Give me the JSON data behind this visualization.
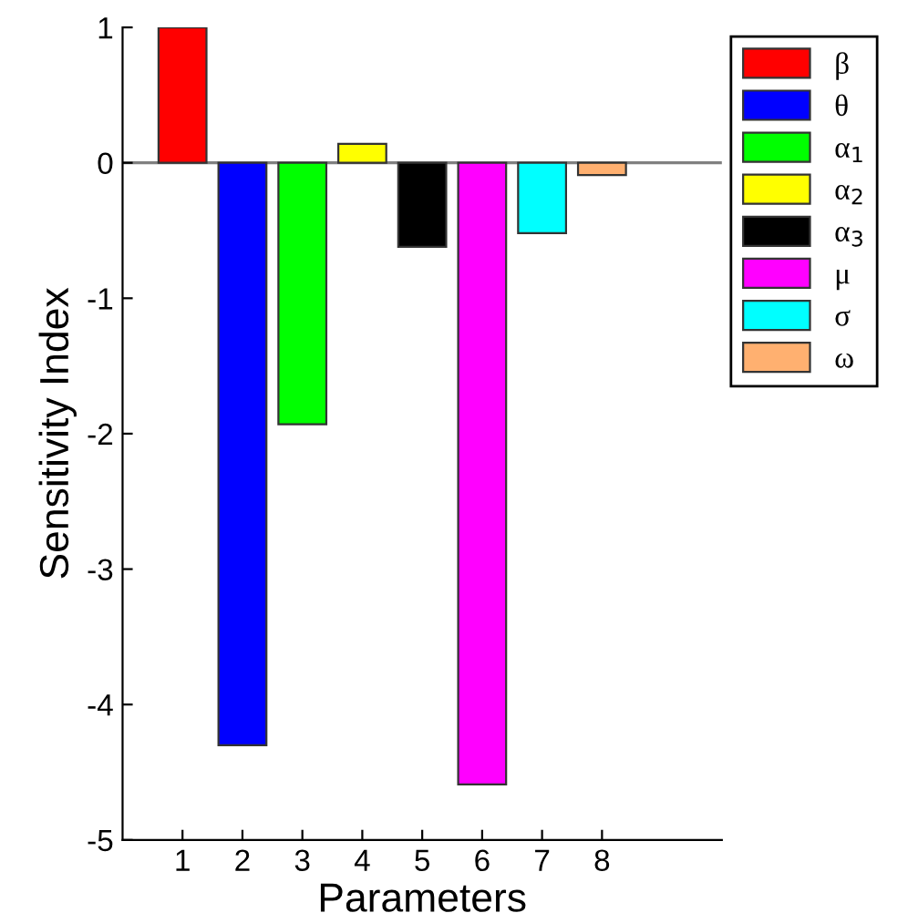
{
  "chart_data": {
    "type": "bar",
    "xlabel": "Parameters",
    "ylabel": "Sensitivity Index",
    "xlim": [
      0,
      10
    ],
    "xticks": [
      1,
      2,
      3,
      4,
      5,
      6,
      7,
      8
    ],
    "ylim": [
      -5,
      1
    ],
    "yticks": [
      -5,
      -4,
      -3,
      -2,
      -1,
      0,
      1
    ],
    "grid": false,
    "legend": "right",
    "ref_lines": [
      {
        "axis": "y",
        "value": 0,
        "color": "#808080"
      }
    ],
    "series": [
      {
        "name": "β",
        "color": "#ff0000",
        "x": [
          1
        ],
        "values": [
          1.0
        ]
      },
      {
        "name": "θ",
        "color": "#0000ff",
        "x": [
          2
        ],
        "values": [
          -4.3
        ]
      },
      {
        "name": "α$_{1}$",
        "color": "#00ff00",
        "x": [
          3
        ],
        "values": [
          -1.93
        ]
      },
      {
        "name": "α$_{2}$",
        "color": "#ffff00",
        "x": [
          4
        ],
        "values": [
          0.14
        ]
      },
      {
        "name": "α$_{3}$",
        "color": "#000000",
        "x": [
          5
        ],
        "values": [
          -0.62
        ]
      },
      {
        "name": "μ",
        "color": "#ff00ff",
        "x": [
          6
        ],
        "values": [
          -4.59
        ]
      },
      {
        "name": "σ",
        "color": "#00ffff",
        "x": [
          7
        ],
        "values": [
          -0.52
        ]
      },
      {
        "name": "ω",
        "color": "#ffb070",
        "x": [
          8
        ],
        "values": [
          -0.09
        ]
      }
    ]
  }
}
